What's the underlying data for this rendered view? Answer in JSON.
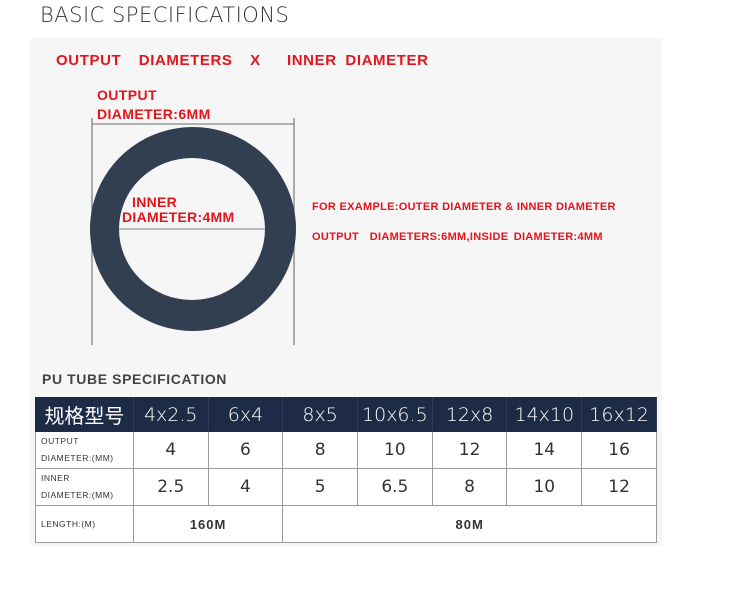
{
  "page_title": "BASIC SPECIFICATIONS",
  "diagram": {
    "heading": "OUTPUT  DIAMETERS  X   INNER DIAMETER",
    "output_label_1": "OUTPUT",
    "output_label_2": "DIAMETER:6MM",
    "inner_label_1": "INNER",
    "inner_label_2": "DIAMETER:4MM",
    "example_1": "FOR EXAMPLE:OUTER DIAMETER & INNER DIAMETER",
    "example_2": "OUTPUT  DIAMETERS:6MM,INSIDE DIAMETER:4MM",
    "ring_color": "#323f50",
    "label_color": "#e3141b"
  },
  "table": {
    "title": "PU TUBE SPECIFICATION",
    "header_label": "规格型号",
    "models": [
      "4x2.5",
      "6x4",
      "8x5",
      "10x6.5",
      "12x8",
      "14x10",
      "16x12"
    ],
    "output_label_1": "OUTPUT",
    "output_label_2": "DIAMETER:(MM)",
    "output_values": [
      "4",
      "6",
      "8",
      "10",
      "12",
      "14",
      "16"
    ],
    "inner_label_1": "INNER",
    "inner_label_2": "DIAMETER:(MM)",
    "inner_values": [
      "2.5",
      "4",
      "5",
      "6.5",
      "8",
      "10",
      "12"
    ],
    "length_label": "LENGTH:(M)",
    "length_values": [
      "160M",
      "80M"
    ],
    "header_color": "#1d2b47"
  }
}
